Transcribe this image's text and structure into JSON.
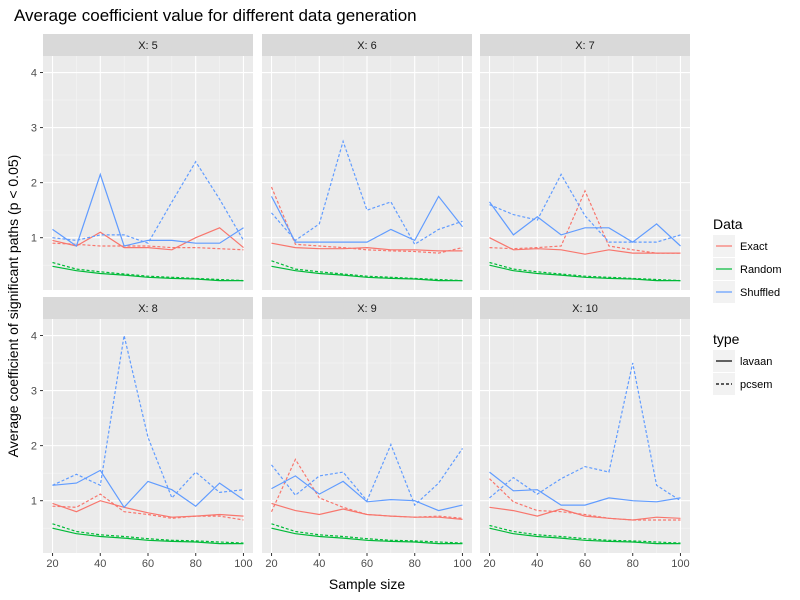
{
  "chart_data": {
    "type": "line",
    "title": "Average coefficient value for different data generation",
    "xlabel": "Sample size",
    "ylabel": "Average coefficient of significant paths (p < 0.05)",
    "facet_prefix": "X: ",
    "x": [
      20,
      30,
      40,
      50,
      60,
      70,
      80,
      90,
      100
    ],
    "xlim": [
      16,
      104
    ],
    "ylim": [
      0.05,
      4.3
    ],
    "x_ticks": [
      20,
      40,
      60,
      80,
      100
    ],
    "y_ticks": [
      1,
      2,
      3,
      4
    ],
    "legend_color": {
      "title": "Data",
      "entries": [
        {
          "name": "Exact",
          "color": "#F8766D"
        },
        {
          "name": "Random",
          "color": "#00BA38"
        },
        {
          "name": "Shuffled",
          "color": "#619CFF"
        }
      ]
    },
    "legend_type": {
      "title": "type",
      "entries": [
        {
          "name": "lavaan",
          "dash": "solid"
        },
        {
          "name": "pcsem",
          "dash": "dashed"
        }
      ]
    },
    "facets": [
      {
        "label": "5",
        "series": [
          {
            "data": "Exact",
            "type": "lavaan",
            "values": [
              0.95,
              0.85,
              1.1,
              0.82,
              0.82,
              0.78,
              1.0,
              1.18,
              0.82
            ]
          },
          {
            "data": "Exact",
            "type": "pcsem",
            "values": [
              0.9,
              0.88,
              0.85,
              0.85,
              0.85,
              0.82,
              0.82,
              0.8,
              0.78
            ]
          },
          {
            "data": "Random",
            "type": "lavaan",
            "values": [
              0.48,
              0.4,
              0.35,
              0.32,
              0.28,
              0.26,
              0.25,
              0.22,
              0.22
            ]
          },
          {
            "data": "Random",
            "type": "pcsem",
            "values": [
              0.55,
              0.43,
              0.38,
              0.34,
              0.3,
              0.28,
              0.26,
              0.24,
              0.22
            ]
          },
          {
            "data": "Shuffled",
            "type": "lavaan",
            "values": [
              1.15,
              0.85,
              2.15,
              0.85,
              0.95,
              0.95,
              0.9,
              0.9,
              1.18
            ]
          },
          {
            "data": "Shuffled",
            "type": "pcsem",
            "values": [
              1.0,
              0.95,
              1.05,
              1.05,
              0.9,
              1.65,
              2.38,
              1.7,
              0.95
            ]
          }
        ]
      },
      {
        "label": "6",
        "series": [
          {
            "data": "Exact",
            "type": "lavaan",
            "values": [
              0.9,
              0.82,
              0.8,
              0.8,
              0.82,
              0.78,
              0.78,
              0.76,
              0.76
            ]
          },
          {
            "data": "Exact",
            "type": "pcsem",
            "values": [
              1.92,
              0.88,
              0.85,
              0.82,
              0.78,
              0.76,
              0.75,
              0.72,
              0.82
            ]
          },
          {
            "data": "Random",
            "type": "lavaan",
            "values": [
              0.48,
              0.4,
              0.35,
              0.32,
              0.28,
              0.26,
              0.25,
              0.22,
              0.22
            ]
          },
          {
            "data": "Random",
            "type": "pcsem",
            "values": [
              0.58,
              0.43,
              0.38,
              0.34,
              0.3,
              0.28,
              0.26,
              0.24,
              0.22
            ]
          },
          {
            "data": "Shuffled",
            "type": "lavaan",
            "values": [
              1.75,
              0.92,
              0.92,
              0.92,
              0.92,
              1.15,
              0.95,
              1.75,
              1.2
            ]
          },
          {
            "data": "Shuffled",
            "type": "pcsem",
            "values": [
              1.45,
              0.95,
              1.25,
              2.75,
              1.5,
              1.65,
              0.88,
              1.15,
              1.3
            ]
          }
        ]
      },
      {
        "label": "7",
        "series": [
          {
            "data": "Exact",
            "type": "lavaan",
            "values": [
              1.0,
              0.78,
              0.8,
              0.78,
              0.7,
              0.78,
              0.72,
              0.72,
              0.72
            ]
          },
          {
            "data": "Exact",
            "type": "pcsem",
            "values": [
              0.82,
              0.8,
              0.82,
              0.85,
              1.85,
              0.85,
              0.78,
              0.72,
              0.72
            ]
          },
          {
            "data": "Random",
            "type": "lavaan",
            "values": [
              0.5,
              0.4,
              0.35,
              0.32,
              0.28,
              0.26,
              0.25,
              0.22,
              0.22
            ]
          },
          {
            "data": "Random",
            "type": "pcsem",
            "values": [
              0.55,
              0.43,
              0.38,
              0.34,
              0.3,
              0.28,
              0.26,
              0.24,
              0.22
            ]
          },
          {
            "data": "Shuffled",
            "type": "lavaan",
            "values": [
              1.65,
              1.05,
              1.38,
              1.05,
              1.18,
              1.18,
              0.92,
              1.25,
              0.85
            ]
          },
          {
            "data": "Shuffled",
            "type": "pcsem",
            "values": [
              1.6,
              1.42,
              1.32,
              2.15,
              1.4,
              0.92,
              0.92,
              0.92,
              1.05
            ]
          }
        ]
      },
      {
        "label": "8",
        "series": [
          {
            "data": "Exact",
            "type": "lavaan",
            "values": [
              0.95,
              0.8,
              1.0,
              0.88,
              0.78,
              0.7,
              0.72,
              0.75,
              0.72
            ]
          },
          {
            "data": "Exact",
            "type": "pcsem",
            "values": [
              0.9,
              0.88,
              1.12,
              0.8,
              0.75,
              0.68,
              0.72,
              0.72,
              0.65
            ]
          },
          {
            "data": "Random",
            "type": "lavaan",
            "values": [
              0.5,
              0.4,
              0.35,
              0.32,
              0.28,
              0.26,
              0.25,
              0.22,
              0.22
            ]
          },
          {
            "data": "Random",
            "type": "pcsem",
            "values": [
              0.58,
              0.44,
              0.38,
              0.35,
              0.31,
              0.28,
              0.27,
              0.25,
              0.23
            ]
          },
          {
            "data": "Shuffled",
            "type": "lavaan",
            "values": [
              1.28,
              1.32,
              1.55,
              0.88,
              1.35,
              1.2,
              0.9,
              1.32,
              1.02
            ]
          },
          {
            "data": "Shuffled",
            "type": "pcsem",
            "values": [
              1.28,
              1.48,
              1.28,
              4.0,
              2.15,
              1.05,
              1.52,
              1.15,
              1.2
            ]
          }
        ]
      },
      {
        "label": "9",
        "series": [
          {
            "data": "Exact",
            "type": "lavaan",
            "values": [
              0.95,
              0.82,
              0.75,
              0.85,
              0.75,
              0.72,
              0.7,
              0.7,
              0.66
            ]
          },
          {
            "data": "Exact",
            "type": "pcsem",
            "values": [
              0.8,
              1.75,
              1.05,
              0.88,
              0.75,
              0.72,
              0.7,
              0.72,
              0.68
            ]
          },
          {
            "data": "Random",
            "type": "lavaan",
            "values": [
              0.5,
              0.4,
              0.35,
              0.32,
              0.28,
              0.26,
              0.25,
              0.22,
              0.22
            ]
          },
          {
            "data": "Random",
            "type": "pcsem",
            "values": [
              0.58,
              0.44,
              0.38,
              0.35,
              0.31,
              0.28,
              0.27,
              0.25,
              0.23
            ]
          },
          {
            "data": "Shuffled",
            "type": "lavaan",
            "values": [
              1.22,
              1.45,
              1.12,
              1.35,
              0.98,
              1.02,
              1.0,
              0.82,
              0.92
            ]
          },
          {
            "data": "Shuffled",
            "type": "pcsem",
            "values": [
              1.65,
              1.1,
              1.45,
              1.52,
              1.0,
              2.02,
              0.92,
              1.32,
              1.95
            ]
          }
        ]
      },
      {
        "label": "10",
        "series": [
          {
            "data": "Exact",
            "type": "lavaan",
            "values": [
              0.88,
              0.82,
              0.72,
              0.85,
              0.72,
              0.68,
              0.65,
              0.7,
              0.68
            ]
          },
          {
            "data": "Exact",
            "type": "pcsem",
            "values": [
              1.4,
              0.98,
              0.82,
              0.8,
              0.75,
              0.68,
              0.65,
              0.65,
              0.65
            ]
          },
          {
            "data": "Random",
            "type": "lavaan",
            "values": [
              0.5,
              0.4,
              0.35,
              0.32,
              0.28,
              0.26,
              0.25,
              0.22,
              0.22
            ]
          },
          {
            "data": "Random",
            "type": "pcsem",
            "values": [
              0.55,
              0.44,
              0.38,
              0.35,
              0.31,
              0.28,
              0.27,
              0.25,
              0.23
            ]
          },
          {
            "data": "Shuffled",
            "type": "lavaan",
            "values": [
              1.52,
              1.18,
              1.2,
              0.92,
              0.92,
              1.05,
              1.0,
              0.98,
              1.05
            ]
          },
          {
            "data": "Shuffled",
            "type": "pcsem",
            "values": [
              1.05,
              1.42,
              1.12,
              1.4,
              1.62,
              1.52,
              3.5,
              1.28,
              1.0
            ]
          }
        ]
      }
    ]
  }
}
